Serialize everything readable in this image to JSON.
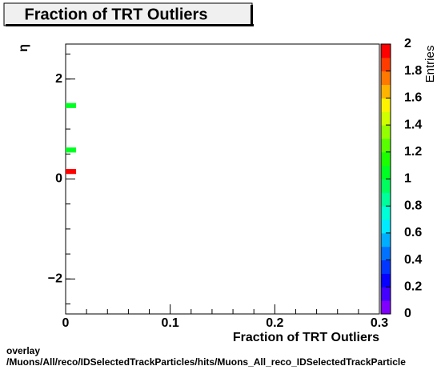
{
  "chart_data": {
    "type": "heatmap",
    "title": "Fraction of TRT Outliers",
    "x_label": "Fraction of TRT Outliers",
    "y_label": "η",
    "colorbar_label": "Entries",
    "xlim": [
      0,
      0.3
    ],
    "xticks": [
      0,
      0.1,
      0.2,
      0.3
    ],
    "ylim": [
      -2.7,
      2.7
    ],
    "yticks": [
      {
        "value": -2,
        "label": "−2"
      },
      0,
      2
    ],
    "clim": [
      0,
      2
    ],
    "cticks": [
      0,
      0.2,
      0.4,
      0.6,
      0.8,
      1,
      1.2,
      1.4,
      1.6,
      1.8,
      2
    ],
    "cells": [
      {
        "x0": 0,
        "x1": 0.01,
        "y0": 0.1,
        "y1": 0.2,
        "value": 2
      },
      {
        "x0": 0,
        "x1": 0.01,
        "y0": 0.53,
        "y1": 0.63,
        "value": 1
      },
      {
        "x0": 0,
        "x1": 0.01,
        "y0": 1.42,
        "y1": 1.52,
        "value": 1
      }
    ],
    "footer": [
      "overlay",
      "/Muons/All/reco/IDSelectedTrackParticles/hits/Muons_All_reco_IDSelectedTrackParticle"
    ]
  }
}
